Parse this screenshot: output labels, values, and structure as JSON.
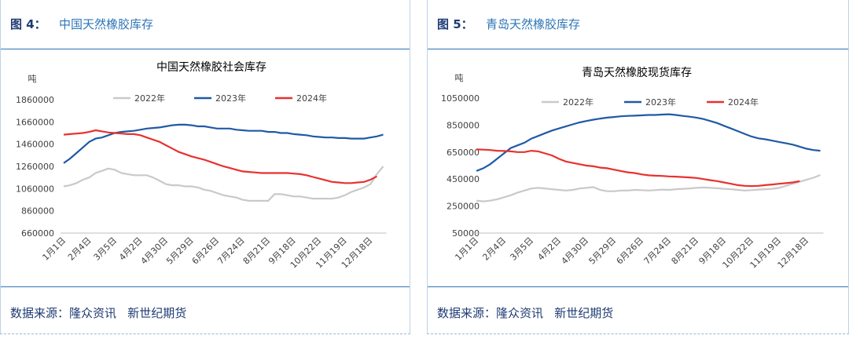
{
  "figures": [
    {
      "label": "图 4：",
      "title": "中国天然橡胶库存",
      "source": "数据来源：隆众资讯   新世纪期货"
    },
    {
      "label": "图 5：",
      "title": "青岛天然橡胶库存",
      "source": "数据来源：隆众资讯   新世纪期货"
    }
  ],
  "chart_data": [
    {
      "type": "line",
      "title": "中国天然橡胶社会库存",
      "y_label": "吨",
      "categories": [
        "1月1日",
        null,
        null,
        null,
        "2月4日",
        null,
        null,
        null,
        "3月5日",
        null,
        null,
        null,
        "4月2日",
        null,
        null,
        null,
        "4月30日",
        null,
        null,
        null,
        "5月29日",
        null,
        null,
        null,
        "6月26日",
        null,
        null,
        null,
        "7月24日",
        null,
        null,
        null,
        "8月21日",
        null,
        null,
        null,
        "9月18日",
        null,
        null,
        null,
        "10月22日",
        null,
        null,
        null,
        "11月19日",
        null,
        null,
        null,
        "12月18日",
        null,
        null
      ],
      "ylim": [
        660000,
        1860000
      ],
      "yticks": [
        660000,
        860000,
        1060000,
        1260000,
        1460000,
        1660000,
        1860000
      ],
      "series": [
        {
          "name": "2022年",
          "color": "#c9c9c9",
          "values": [
            1080000,
            1090000,
            1110000,
            1140000,
            1160000,
            1200000,
            1220000,
            1240000,
            1230000,
            1200000,
            1190000,
            1180000,
            1180000,
            1180000,
            1160000,
            1130000,
            1100000,
            1090000,
            1090000,
            1080000,
            1080000,
            1070000,
            1050000,
            1040000,
            1020000,
            1000000,
            990000,
            980000,
            960000,
            950000,
            950000,
            950000,
            950000,
            1010000,
            1010000,
            1000000,
            990000,
            990000,
            980000,
            970000,
            970000,
            970000,
            970000,
            980000,
            1000000,
            1030000,
            1050000,
            1070000,
            1100000,
            1190000,
            1260000
          ]
        },
        {
          "name": "2023年",
          "color": "#1f5aa6",
          "values": [
            1290000,
            1330000,
            1380000,
            1430000,
            1480000,
            1510000,
            1520000,
            1540000,
            1560000,
            1570000,
            1575000,
            1580000,
            1590000,
            1600000,
            1605000,
            1610000,
            1620000,
            1630000,
            1635000,
            1635000,
            1630000,
            1620000,
            1620000,
            1610000,
            1600000,
            1600000,
            1600000,
            1590000,
            1585000,
            1580000,
            1580000,
            1580000,
            1570000,
            1570000,
            1560000,
            1560000,
            1550000,
            1545000,
            1540000,
            1530000,
            1525000,
            1520000,
            1520000,
            1515000,
            1515000,
            1510000,
            1510000,
            1510000,
            1520000,
            1530000,
            1545000
          ]
        },
        {
          "name": "2024年",
          "color": "#e8312f",
          "values": [
            1545000,
            1550000,
            1555000,
            1560000,
            1570000,
            1585000,
            1575000,
            1565000,
            1560000,
            1555000,
            1550000,
            1550000,
            1540000,
            1520000,
            1500000,
            1480000,
            1450000,
            1420000,
            1390000,
            1370000,
            1350000,
            1335000,
            1320000,
            1300000,
            1280000,
            1260000,
            1245000,
            1230000,
            1215000,
            1210000,
            1205000,
            1200000,
            1200000,
            1200000,
            1200000,
            1200000,
            1195000,
            1190000,
            1180000,
            1165000,
            1150000,
            1135000,
            1120000,
            1115000,
            1110000,
            1110000,
            1115000,
            1120000,
            1140000,
            1170000,
            null
          ]
        }
      ]
    },
    {
      "type": "line",
      "title": "青岛天然橡胶现货库存",
      "y_label": "吨",
      "categories": [
        "1月1日",
        null,
        null,
        null,
        "2月4日",
        null,
        null,
        null,
        "3月5日",
        null,
        null,
        null,
        "4月2日",
        null,
        null,
        null,
        "4月30日",
        null,
        null,
        null,
        "5月29日",
        null,
        null,
        null,
        "6月26日",
        null,
        null,
        null,
        "7月24日",
        null,
        null,
        null,
        "8月21日",
        null,
        null,
        null,
        "9月18日",
        null,
        null,
        null,
        "10月22日",
        null,
        null,
        null,
        "11月19日",
        null,
        null,
        null,
        "12月18日",
        null,
        null
      ],
      "ylim": [
        50000,
        1050000
      ],
      "yticks": [
        50000,
        250000,
        450000,
        650000,
        850000,
        1050000
      ],
      "series": [
        {
          "name": "2022年",
          "color": "#c9c9c9",
          "values": [
            290000,
            285000,
            290000,
            300000,
            315000,
            330000,
            350000,
            365000,
            380000,
            385000,
            380000,
            375000,
            370000,
            365000,
            370000,
            380000,
            385000,
            390000,
            370000,
            360000,
            360000,
            365000,
            365000,
            370000,
            368000,
            365000,
            368000,
            372000,
            370000,
            375000,
            378000,
            380000,
            385000,
            388000,
            385000,
            382000,
            378000,
            375000,
            370000,
            365000,
            368000,
            372000,
            375000,
            378000,
            385000,
            400000,
            415000,
            430000,
            445000,
            460000,
            480000
          ]
        },
        {
          "name": "2023年",
          "color": "#1f5aa6",
          "values": [
            510000,
            530000,
            560000,
            600000,
            640000,
            680000,
            700000,
            720000,
            750000,
            770000,
            790000,
            810000,
            825000,
            840000,
            855000,
            870000,
            880000,
            890000,
            898000,
            905000,
            910000,
            915000,
            918000,
            920000,
            922000,
            925000,
            925000,
            928000,
            930000,
            925000,
            918000,
            912000,
            905000,
            895000,
            880000,
            865000,
            845000,
            825000,
            805000,
            785000,
            765000,
            752000,
            745000,
            735000,
            725000,
            715000,
            705000,
            690000,
            675000,
            665000,
            660000
          ]
        },
        {
          "name": "2024年",
          "color": "#e8312f",
          "values": [
            670000,
            668000,
            665000,
            660000,
            658000,
            655000,
            650000,
            650000,
            660000,
            655000,
            640000,
            625000,
            600000,
            580000,
            570000,
            560000,
            550000,
            545000,
            535000,
            530000,
            520000,
            510000,
            500000,
            495000,
            485000,
            478000,
            475000,
            473000,
            470000,
            468000,
            465000,
            462000,
            458000,
            450000,
            442000,
            435000,
            425000,
            415000,
            405000,
            400000,
            398000,
            400000,
            405000,
            410000,
            415000,
            420000,
            425000,
            435000,
            null,
            null,
            null
          ]
        }
      ]
    }
  ]
}
